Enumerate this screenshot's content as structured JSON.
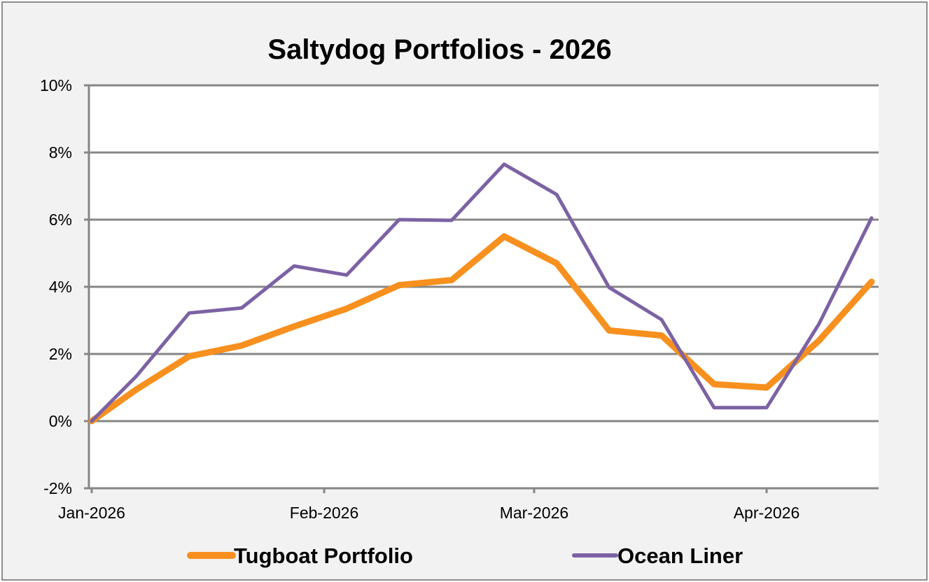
{
  "chart_data": {
    "type": "line",
    "title": "Saltydog Portfolios - 2026",
    "xlabel": "",
    "ylabel": "",
    "ylim": [
      -2,
      10
    ],
    "yticks": [
      -2,
      0,
      2,
      4,
      6,
      8,
      10
    ],
    "ytick_labels": [
      "-2%",
      "0%",
      "2%",
      "4%",
      "6%",
      "8%",
      "10%"
    ],
    "xlim_days_from_jan1": [
      0,
      105
    ],
    "xticks_days_from_jan1": [
      0,
      31,
      59,
      90
    ],
    "xtick_labels": [
      "Jan-2026",
      "Feb-2026",
      "Mar-2026",
      "Apr-2026"
    ],
    "grid": "horizontal",
    "legend_position": "bottom",
    "x_days_from_jan1": [
      0,
      6,
      13,
      20,
      27,
      34,
      41,
      48,
      55,
      62,
      69,
      76,
      83,
      90,
      97,
      104
    ],
    "series": [
      {
        "name": "Tugboat Portfolio",
        "color": "#f7901e",
        "values": [
          0,
          0.95,
          1.93,
          2.25,
          2.82,
          3.35,
          4.05,
          4.2,
          5.5,
          4.7,
          2.7,
          2.55,
          1.1,
          1.0,
          2.4,
          4.15
        ]
      },
      {
        "name": "Ocean Liner",
        "color": "#7c62a4",
        "values": [
          0,
          1.35,
          3.22,
          3.37,
          4.62,
          4.35,
          6.0,
          5.98,
          7.65,
          6.75,
          3.98,
          3.02,
          0.4,
          0.4,
          2.9,
          6.05
        ]
      }
    ]
  }
}
